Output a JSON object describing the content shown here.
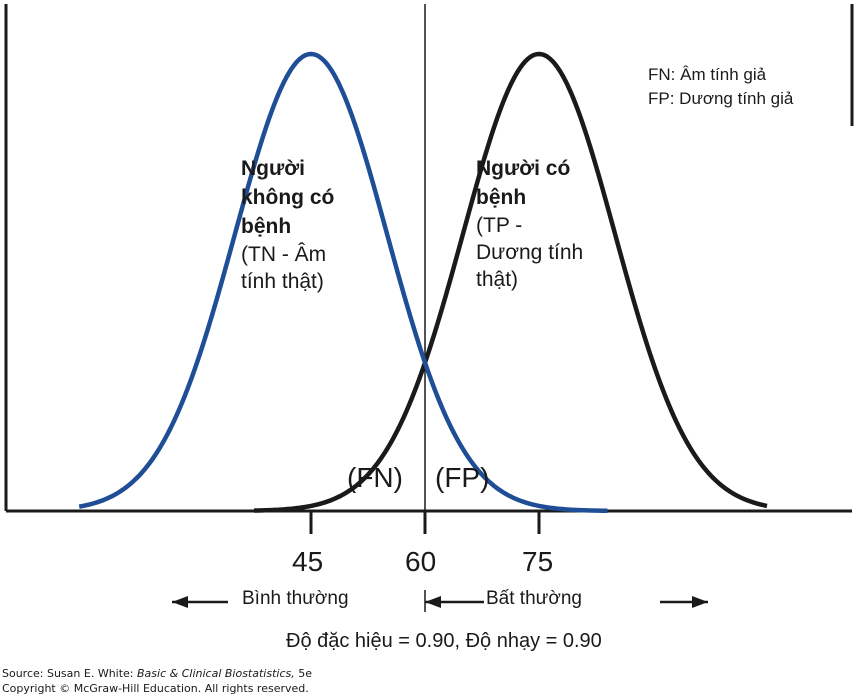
{
  "colors": {
    "healthy": "#1f4e96",
    "diseased": "#1a1a1a"
  },
  "chart_data": {
    "type": "line",
    "x_ticks": [
      45,
      60,
      75
    ],
    "threshold": 60,
    "series": [
      {
        "group": "healthy",
        "mean": 45,
        "sd": 10,
        "color": "#1f4e96"
      },
      {
        "group": "diseased",
        "mean": 75,
        "sd": 10,
        "color": "#1a1a1a"
      }
    ],
    "groups": {
      "healthy": {
        "title": [
          "Người",
          "không có",
          "bệnh"
        ],
        "sub": [
          "(TN - Âm",
          "tính thật)"
        ]
      },
      "diseased": {
        "title": [
          "Người có",
          "bệnh"
        ],
        "sub": [
          "(TP -",
          "Dương tính",
          "thật)"
        ]
      }
    },
    "legend": [
      "FN: Âm tính giả",
      "FP: Dương tính giả"
    ],
    "regions": {
      "fn": "(FN)",
      "fp": "(FP)"
    },
    "directions": {
      "normal": "Bình thường",
      "abnormal": "Bất thường"
    },
    "footer": "Độ đặc hiệu = 0.90, Độ nhạy = 0.90"
  },
  "source": {
    "prefix": "Source: Susan E. White: ",
    "book": "Basic & Clinical Biostatistics,",
    "edition": " 5e",
    "copyright": "Copyright © McGraw-Hill Education. All rights reserved."
  }
}
